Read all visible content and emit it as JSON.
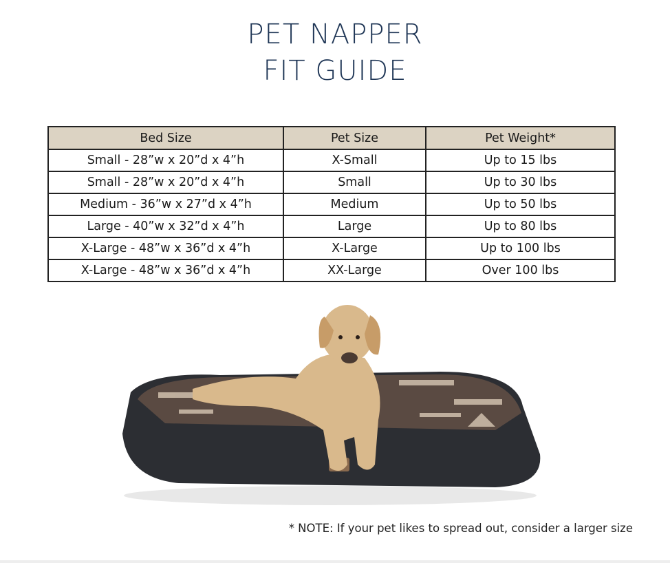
{
  "title": {
    "line1": "PET NAPPER",
    "line2": "FIT GUIDE"
  },
  "table": {
    "headers": [
      "Bed Size",
      "Pet Size",
      "Pet Weight*"
    ],
    "rows": [
      [
        "Small - 28”w x 20”d x 4”h",
        "X-Small",
        "Up to 15 lbs"
      ],
      [
        "Small - 28”w x 20”d x 4”h",
        "Small",
        "Up to 30 lbs"
      ],
      [
        "Medium - 36”w x 27”d x 4”h",
        "Medium",
        "Up to 50 lbs"
      ],
      [
        "Large - 40”w x 32”d x 4”h",
        "Large",
        "Up to 80 lbs"
      ],
      [
        "X-Large - 48”w x 36”d x 4”h",
        "X-Large",
        "Up to 100 lbs"
      ],
      [
        "X-Large - 48”w x 36”d x 4”h",
        "XX-Large",
        "Over 100 lbs"
      ]
    ]
  },
  "note": "* NOTE: If your pet likes to spread out, consider a larger size",
  "colors": {
    "title": "#1f3656",
    "header_bg": "#dcd3c3"
  }
}
